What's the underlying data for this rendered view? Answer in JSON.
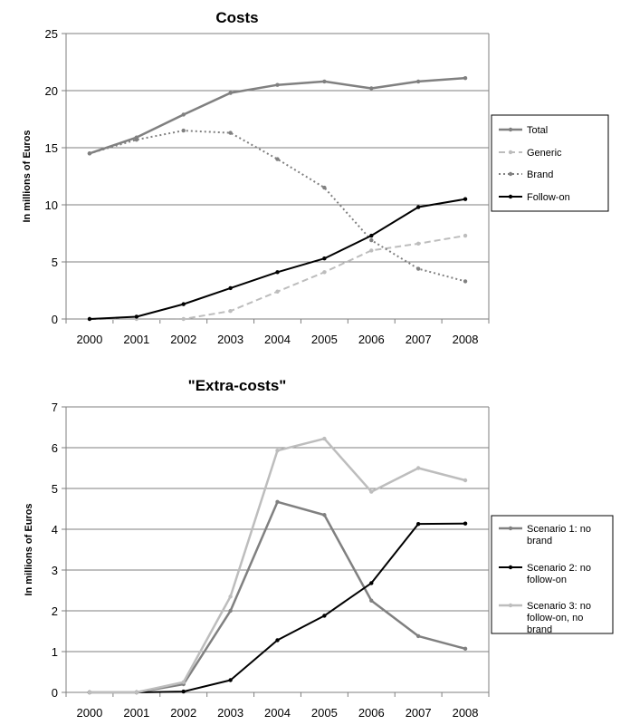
{
  "chart_data": [
    {
      "type": "line",
      "title": "Costs",
      "xlabel": "",
      "ylabel": "In millions of Euros",
      "ylim": [
        0,
        25
      ],
      "yticks": [
        0,
        5,
        10,
        15,
        20,
        25
      ],
      "categories": [
        "2000",
        "2001",
        "2002",
        "2003",
        "2004",
        "2005",
        "2006",
        "2007",
        "2008"
      ],
      "grid": true,
      "legend_position": "right",
      "series": [
        {
          "name": "Total",
          "values": [
            14.5,
            15.9,
            17.9,
            19.8,
            20.5,
            20.8,
            20.2,
            20.8,
            21.1
          ],
          "color": "#808080",
          "dash": "solid",
          "width": 2.5
        },
        {
          "name": "Generic",
          "values": [
            0,
            0,
            0,
            0.7,
            2.4,
            4.1,
            6.0,
            6.6,
            7.3
          ],
          "color": "#bdbdbd",
          "dash": "dashed",
          "width": 2
        },
        {
          "name": "Brand",
          "values": [
            14.5,
            15.7,
            16.5,
            16.3,
            14.0,
            11.5,
            6.9,
            4.4,
            3.3
          ],
          "color": "#808080",
          "dash": "dotted",
          "width": 2
        },
        {
          "name": "Follow-on",
          "values": [
            0,
            0.2,
            1.3,
            2.7,
            4.1,
            5.3,
            7.3,
            9.8,
            10.5
          ],
          "color": "#000000",
          "dash": "solid",
          "width": 2
        }
      ]
    },
    {
      "type": "line",
      "title": "\"Extra-costs\"",
      "xlabel": "",
      "ylabel": "In millions of Euros",
      "ylim": [
        0,
        7
      ],
      "yticks": [
        0,
        1,
        2,
        3,
        4,
        5,
        6,
        7
      ],
      "categories": [
        "2000",
        "2001",
        "2002",
        "2003",
        "2004",
        "2005",
        "2006",
        "2007",
        "2008"
      ],
      "grid": true,
      "legend_position": "right",
      "series": [
        {
          "name": "Scenario 1: no brand",
          "values": [
            0,
            0,
            0.2,
            2.0,
            4.67,
            4.35,
            2.25,
            1.38,
            1.07
          ],
          "color": "#808080",
          "dash": "solid",
          "width": 2.5
        },
        {
          "name": "Scenario 2: no follow-on",
          "values": [
            0,
            0,
            0.02,
            0.3,
            1.28,
            1.88,
            2.68,
            4.13,
            4.14
          ],
          "color": "#000000",
          "dash": "solid",
          "width": 2
        },
        {
          "name": "Scenario 3: no follow-on, no brand",
          "values": [
            0,
            0,
            0.25,
            2.35,
            5.93,
            6.22,
            4.92,
            5.5,
            5.2
          ],
          "color": "#bdbdbd",
          "dash": "solid",
          "width": 2.5
        }
      ]
    }
  ]
}
